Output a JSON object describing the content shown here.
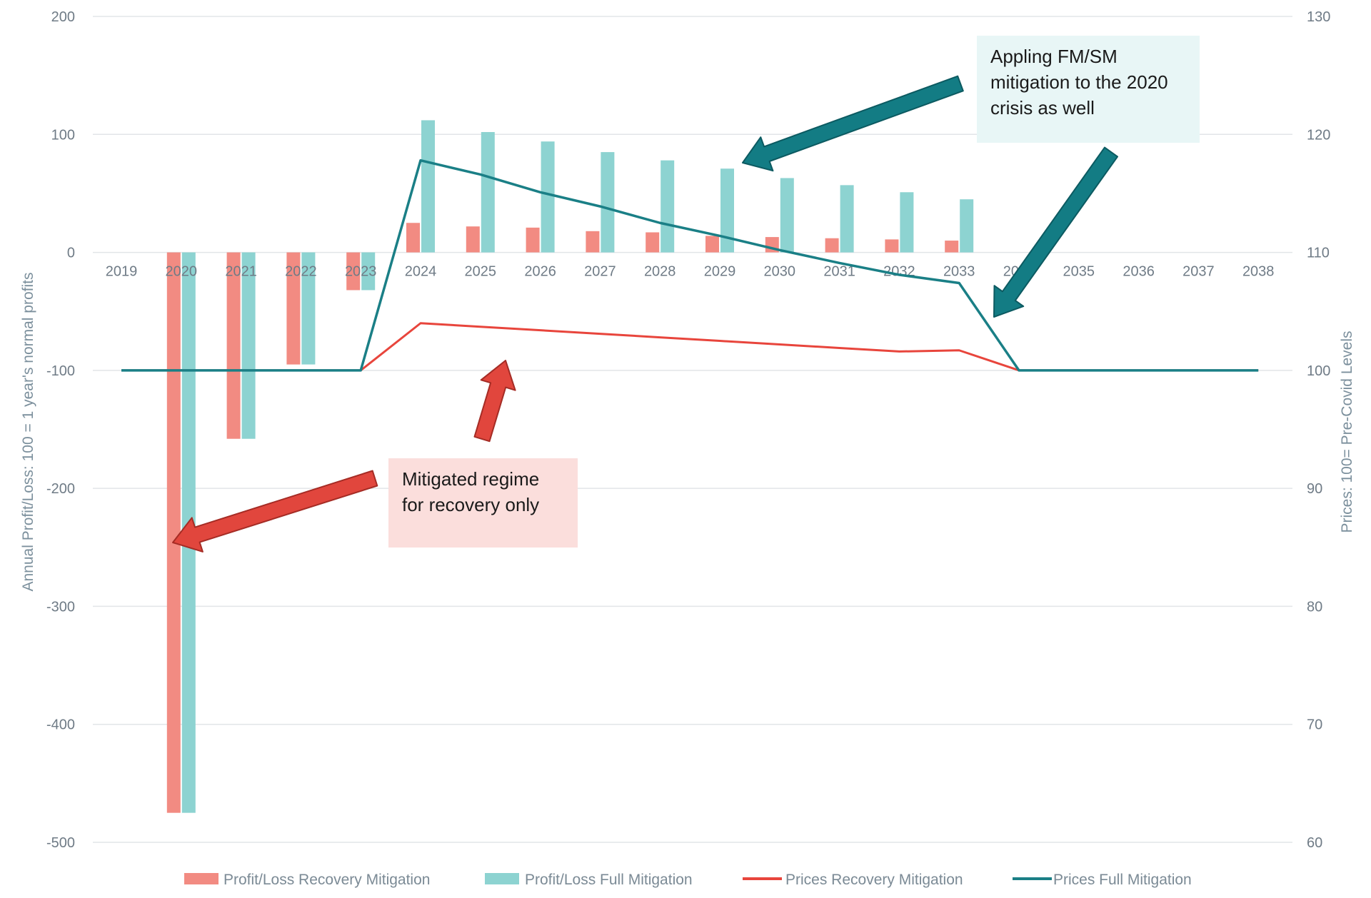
{
  "chart_data": {
    "type": "bar",
    "categories": [
      "2019",
      "2020",
      "2021",
      "2022",
      "2023",
      "2024",
      "2025",
      "2026",
      "2027",
      "2028",
      "2029",
      "2030",
      "2031",
      "2032",
      "2033",
      "2034",
      "2035",
      "2036",
      "2037",
      "2038"
    ],
    "series": [
      {
        "name": "Profit/Loss Recovery Mitigation",
        "kind": "bar",
        "axis": "left",
        "color": "#f28b82",
        "values": [
          0,
          -475,
          -158,
          -95,
          -32,
          25,
          22,
          21,
          18,
          17,
          14,
          13,
          12,
          11,
          10,
          0,
          0,
          0,
          0,
          0
        ]
      },
      {
        "name": "Profit/Loss Full Mitigation",
        "kind": "bar",
        "axis": "left",
        "color": "#8dd3d1",
        "values": [
          0,
          -475,
          -158,
          -95,
          -32,
          112,
          102,
          94,
          85,
          78,
          71,
          63,
          57,
          51,
          45,
          0,
          0,
          0,
          0,
          0
        ]
      },
      {
        "name": "Prices Recovery Mitigation",
        "kind": "line",
        "axis": "right",
        "color": "#e8453c",
        "values": [
          100,
          100,
          100,
          100,
          100,
          104,
          103.7,
          103.4,
          103.1,
          102.8,
          102.5,
          102.2,
          101.9,
          101.6,
          101.7,
          100,
          100,
          100,
          100,
          100
        ]
      },
      {
        "name": "Prices Full Mitigation",
        "kind": "line",
        "axis": "right",
        "color": "#1a7f86",
        "values": [
          100,
          100,
          100,
          100,
          100,
          117.8,
          116.6,
          115.1,
          113.9,
          112.5,
          111.4,
          110.2,
          109.1,
          108.1,
          107.4,
          100,
          100,
          100,
          100,
          100
        ]
      }
    ],
    "left_axis": {
      "label": "Annual Profit/Loss: 100 = 1 year's normal profits",
      "ylim": [
        -500,
        200
      ],
      "ticks": [
        "200",
        "100",
        "0",
        "-100",
        "-200",
        "-300",
        "-400",
        "-500"
      ]
    },
    "right_axis": {
      "label": "Prices: 100= Pre-Covid Levels",
      "ylim": [
        60,
        130
      ],
      "ticks": [
        "130",
        "120",
        "110",
        "100",
        "90",
        "80",
        "70",
        "60"
      ]
    },
    "grid": true,
    "legend_position": "bottom",
    "annotations": [
      {
        "lines": [
          "Appling FM/SM",
          "mitigation to the 2020",
          "crisis as well"
        ],
        "color": "#0f6b74",
        "bg": "#e8f6f6"
      },
      {
        "lines": [
          "Mitigated regime",
          "for recovery only"
        ],
        "color": "#d93a2f",
        "bg": "#fbdedc"
      }
    ]
  }
}
